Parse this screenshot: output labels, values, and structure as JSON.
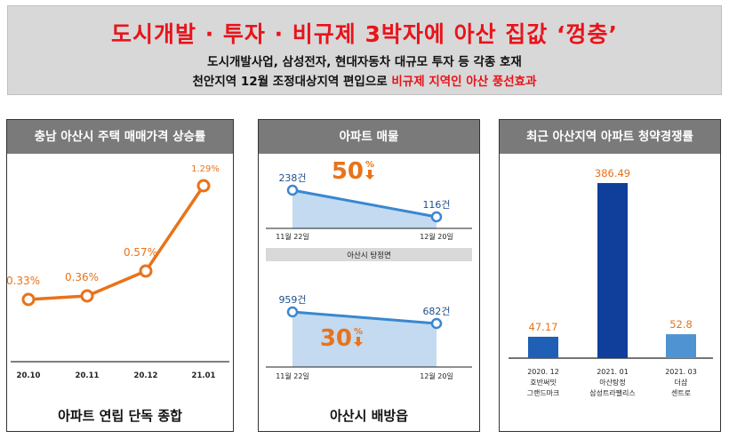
{
  "header": {
    "title": "도시개발 · 투자 · 비규제 3박자에 아산 집값 ‘껑충’",
    "subtitle1": "도시개발사업, 삼성전자, 현대자동차 대규모 투자 등 각종 호재",
    "subtitle2_black": "천안지역 12월 조정대상지역 편입으로 ",
    "subtitle2_red": "비규제 지역인 아산 풍선효과"
  },
  "colors": {
    "orange": "#e8731a",
    "blue_line": "#3a87cf",
    "area_fill": "#bcd6ee",
    "bar_blue": "#1f5fb5",
    "bar_navy": "#0f3f9a",
    "bar_light": "#4f93d2",
    "header_red": "#e8141b",
    "panel_head": "#7a7a7a"
  },
  "chart_data": [
    {
      "type": "line",
      "title": "충남 아산시 주택 매매가격 상승률",
      "categories": [
        "20.10",
        "20.11",
        "20.12",
        "21.01"
      ],
      "values": [
        0.33,
        0.36,
        0.57,
        1.29
      ],
      "data_labels": [
        "0.33%",
        "0.36%",
        "0.57%",
        "1.29%"
      ],
      "footnote": "아파트 연립 단독 종합",
      "color": "orange"
    },
    {
      "type": "area",
      "title": "아파트 매물",
      "subcharts": [
        {
          "region": "",
          "x": [
            "11월 22일",
            "12월 20일"
          ],
          "values": [
            238,
            116
          ],
          "data_labels": [
            "238건",
            "116건"
          ],
          "change_label": "50",
          "change_unit": "%"
        },
        {
          "region": "아산시 탕정면",
          "x": [
            "11월 22일",
            "12월 20일"
          ],
          "values": [
            959,
            682
          ],
          "data_labels": [
            "959건",
            "682건"
          ],
          "change_label": "30",
          "change_unit": "%"
        }
      ],
      "footnote": "아산시 배방읍"
    },
    {
      "type": "bar",
      "title": "최근 아산지역 아파트 청약경쟁률",
      "categories": [
        [
          "2020. 12",
          "호반써밋",
          "그랜드마크"
        ],
        [
          "2021. 01",
          "아산탕정",
          "삼성트라팰리스"
        ],
        [
          "2021. 03",
          "더샵",
          "센트로"
        ]
      ],
      "values": [
        47.17,
        386.49,
        52.8
      ],
      "data_labels": [
        "47.17",
        "386.49",
        "52.8"
      ],
      "bar_colors": [
        "bar_blue",
        "bar_navy",
        "bar_light"
      ]
    }
  ]
}
